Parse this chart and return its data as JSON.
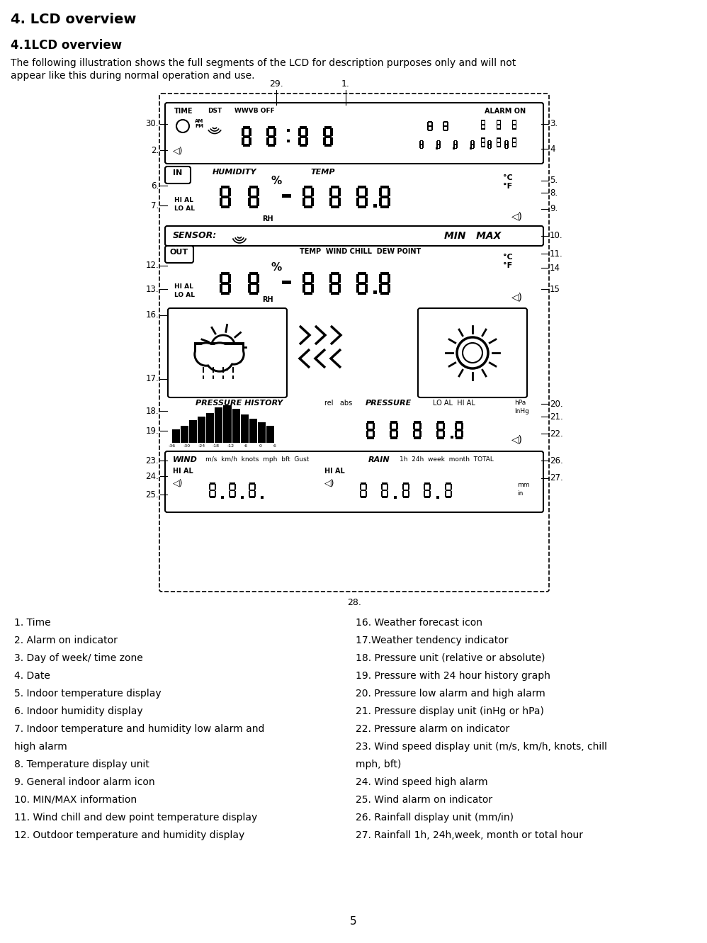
{
  "title": "4. LCD overview",
  "subtitle": "4.1LCD overview",
  "body1": "The following illustration shows the full segments of the LCD for description purposes only and will not",
  "body2": "appear like this during normal operation and use.",
  "page_number": "5",
  "left_items": [
    "1. Time",
    "2. Alarm on indicator",
    "3. Day of week/ time zone",
    "4. Date",
    "5. Indoor temperature display",
    "6. Indoor humidity display",
    "7. Indoor temperature and humidity low alarm and",
    "high alarm",
    "8. Temperature display unit",
    "9. General indoor alarm icon",
    "10. MIN/MAX information",
    "11. Wind chill and dew point temperature display",
    "12. Outdoor temperature and humidity display"
  ],
  "right_items": [
    "16. Weather forecast icon",
    "17.Weather tendency indicator",
    "18. Pressure unit (relative or absolute)",
    "19. Pressure with 24 hour history graph",
    "20. Pressure low alarm and high alarm",
    "21. Pressure display unit (inHg or hPa)",
    "22. Pressure alarm on indicator",
    "23. Wind speed display unit (m/s, km/h, knots, chill",
    "mph, bft)",
    "24. Wind speed high alarm",
    "25. Wind alarm on indicator",
    "26. Rainfall display unit (mm/in)",
    "27. Rainfall 1h, 24h,week, month or total hour"
  ],
  "bg_color": "#ffffff"
}
